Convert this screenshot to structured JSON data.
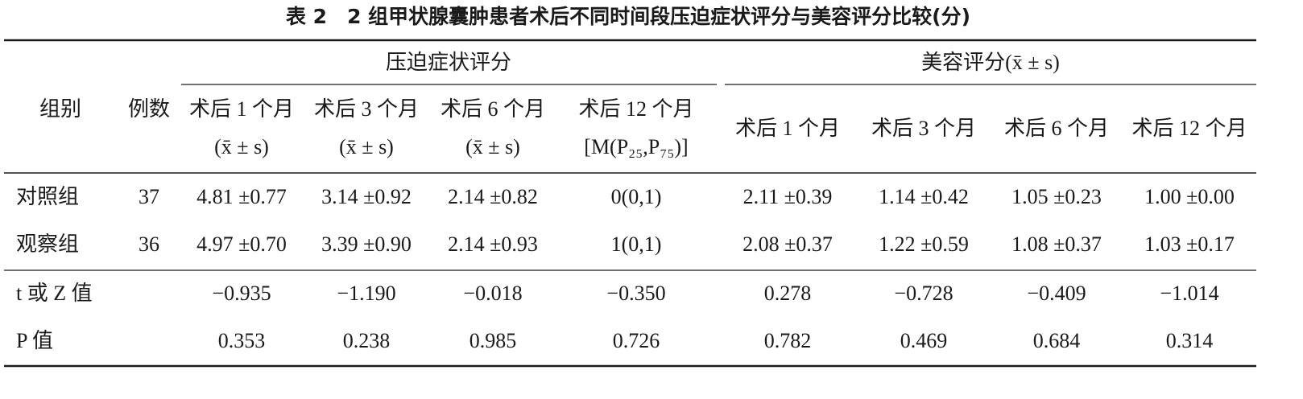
{
  "title": "表 2　2 组甲状腺囊肿患者术后不同时间段压迫症状评分与美容评分比较(分)",
  "table": {
    "group_headers": [
      "压迫症状评分",
      "美容评分(x̄ ± s)"
    ],
    "columns": [
      [
        "组别"
      ],
      [
        "例数"
      ],
      [
        "术后 1 个月",
        "(x̄ ± s)"
      ],
      [
        "术后 3 个月",
        "(x̄ ± s)"
      ],
      [
        "术后 6 个月",
        "(x̄ ± s)"
      ],
      [
        "术后 12 个月",
        "[M(P₂₅,P₇₅)]"
      ],
      [
        "术后 1 个月"
      ],
      [
        "术后 3 个月"
      ],
      [
        "术后 6 个月"
      ],
      [
        "术后 12 个月"
      ]
    ],
    "rows": [
      {
        "group": "对照组",
        "n": "37",
        "values": [
          "4.81 ±0.77",
          "3.14 ±0.92",
          "2.14 ±0.82",
          "0(0,1)",
          "2.11 ±0.39",
          "1.14 ±0.42",
          "1.05 ±0.23",
          "1.00 ±0.00"
        ]
      },
      {
        "group": "观察组",
        "n": "36",
        "values": [
          "4.97 ±0.70",
          "3.39 ±0.90",
          "2.14 ±0.93",
          "1(0,1)",
          "2.08 ±0.37",
          "1.22 ±0.59",
          "1.08 ±0.37",
          "1.03 ±0.17"
        ]
      }
    ],
    "stats": [
      {
        "label": "t 或 Z 值",
        "values": [
          "−0.935",
          "−1.190",
          "−0.018",
          "−0.350",
          "0.278",
          "−0.728",
          "−0.409",
          "−1.014"
        ]
      },
      {
        "label": "P 值",
        "values": [
          "0.353",
          "0.238",
          "0.985",
          "0.726",
          "0.782",
          "0.469",
          "0.684",
          "0.314"
        ]
      }
    ]
  }
}
